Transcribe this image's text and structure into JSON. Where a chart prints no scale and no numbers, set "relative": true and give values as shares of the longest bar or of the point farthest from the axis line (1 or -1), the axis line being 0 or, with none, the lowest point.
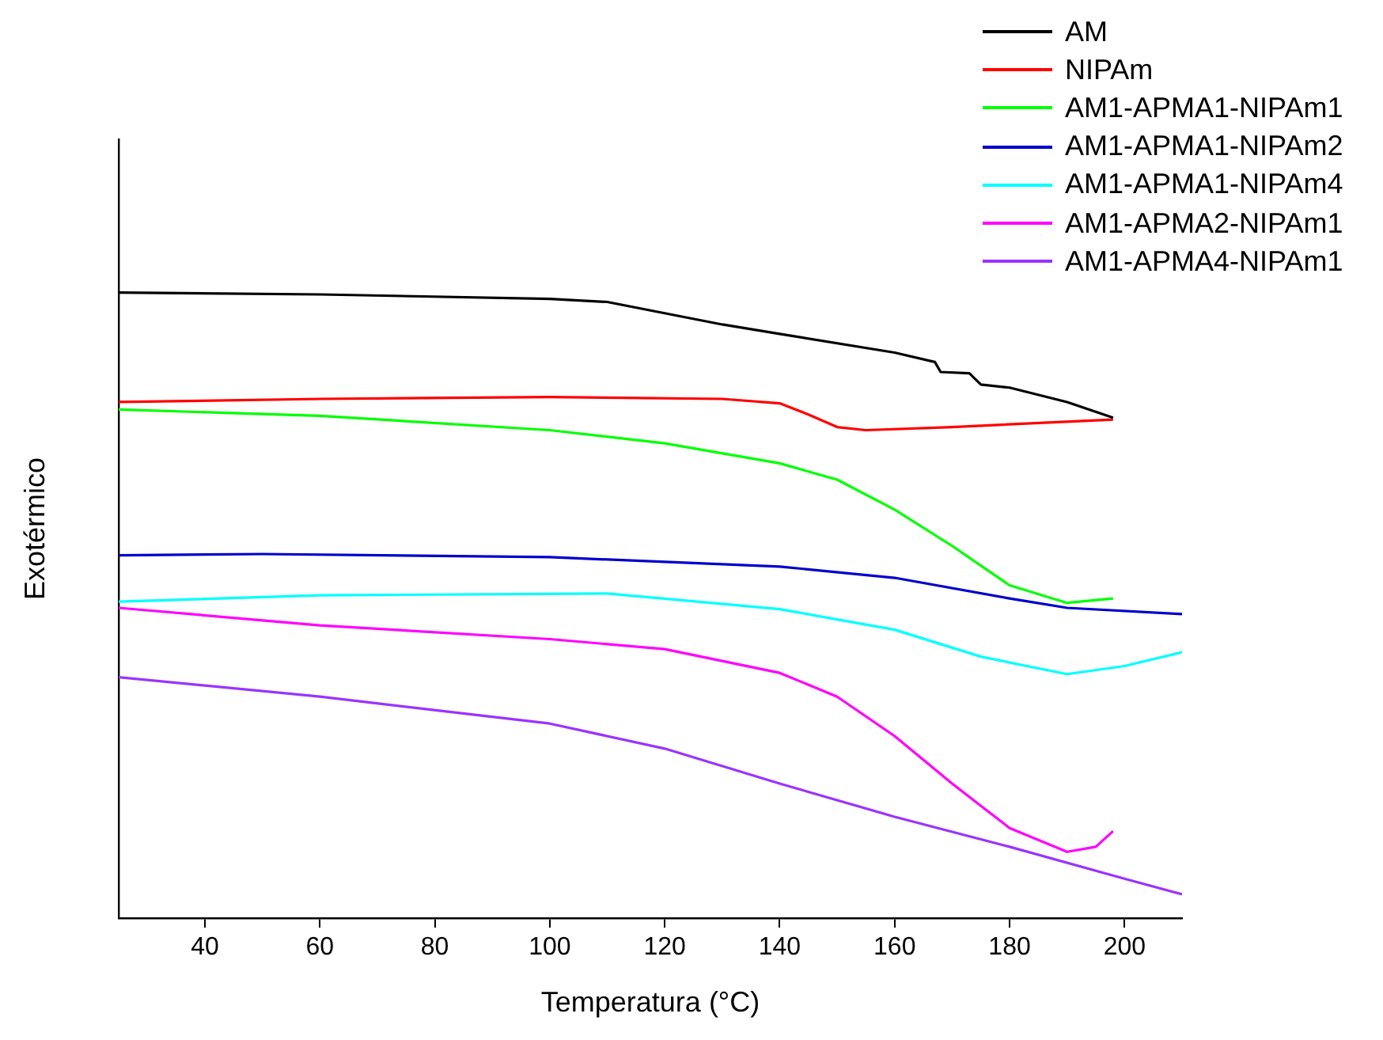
{
  "chart_data": {
    "type": "line",
    "relative": true,
    "xlabel": "Temperatura (°C)",
    "ylabel": "Exotérmico",
    "xlim": [
      25,
      210
    ],
    "xticks": [
      40,
      60,
      80,
      100,
      120,
      140,
      160,
      180,
      200
    ],
    "grid": false,
    "legend": "top right",
    "marker": "none",
    "line_style": "solid",
    "series": [
      {
        "name": "AM",
        "color": "#000000",
        "x": [
          25,
          60,
          100,
          110,
          120,
          130,
          140,
          160,
          167,
          168,
          173,
          175,
          180,
          190,
          198
        ],
        "values": [
          1.0,
          0.997,
          0.99,
          0.985,
          0.967,
          0.949,
          0.934,
          0.904,
          0.889,
          0.873,
          0.871,
          0.853,
          0.848,
          0.825,
          0.8
        ]
      },
      {
        "name": "NIPAm",
        "color": "#ff0000",
        "x": [
          25,
          60,
          100,
          130,
          140,
          145,
          150,
          155,
          170,
          198
        ],
        "values": [
          0.825,
          0.83,
          0.833,
          0.83,
          0.823,
          0.805,
          0.785,
          0.78,
          0.785,
          0.797
        ]
      },
      {
        "name": "AM1-APMA1-NIPAm1",
        "color": "#00ff00",
        "x": [
          25,
          60,
          100,
          120,
          140,
          150,
          160,
          170,
          180,
          190,
          198
        ],
        "values": [
          0.813,
          0.803,
          0.78,
          0.759,
          0.727,
          0.701,
          0.653,
          0.595,
          0.532,
          0.504,
          0.511
        ]
      },
      {
        "name": "AM1-APMA1-NIPAm2",
        "color": "#0000cc",
        "x": [
          25,
          50,
          100,
          140,
          160,
          180,
          190,
          210
        ],
        "values": [
          0.58,
          0.582,
          0.577,
          0.562,
          0.544,
          0.511,
          0.496,
          0.486
        ]
      },
      {
        "name": "AM1-APMA1-NIPAm4",
        "color": "#00ffff",
        "x": [
          25,
          60,
          110,
          140,
          160,
          175,
          190,
          200,
          210
        ],
        "values": [
          0.506,
          0.516,
          0.519,
          0.494,
          0.461,
          0.418,
          0.39,
          0.403,
          0.425
        ]
      },
      {
        "name": "AM1-APMA2-NIPAm1",
        "color": "#ff00ff",
        "x": [
          25,
          60,
          100,
          120,
          140,
          150,
          160,
          170,
          180,
          190,
          195,
          198
        ],
        "values": [
          0.496,
          0.468,
          0.446,
          0.43,
          0.392,
          0.354,
          0.291,
          0.215,
          0.144,
          0.106,
          0.114,
          0.139
        ]
      },
      {
        "name": "AM1-APMA4-NIPAm1",
        "color": "#9933ff",
        "x": [
          25,
          60,
          100,
          120,
          140,
          160,
          180,
          200,
          210
        ],
        "values": [
          0.385,
          0.354,
          0.311,
          0.271,
          0.215,
          0.162,
          0.114,
          0.063,
          0.038
        ]
      }
    ]
  }
}
